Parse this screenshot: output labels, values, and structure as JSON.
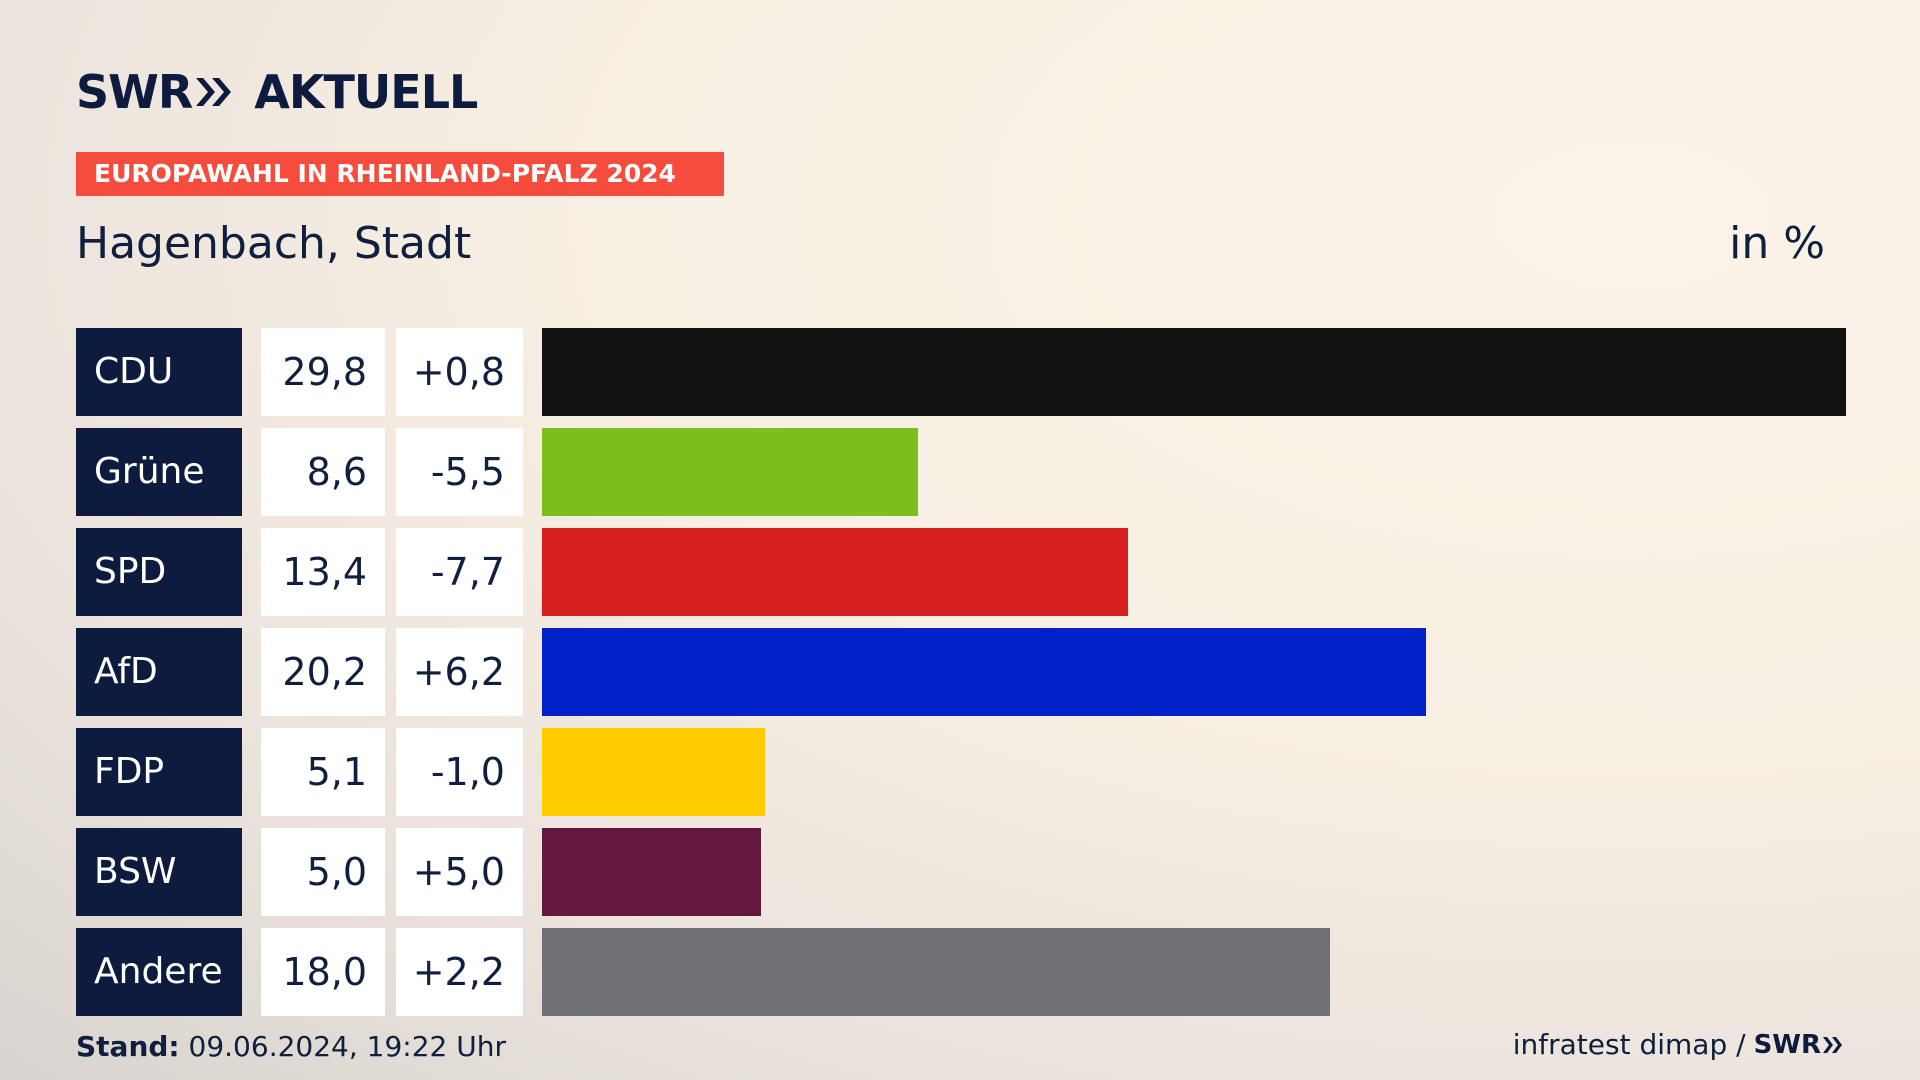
{
  "brand": {
    "swr": "SWR",
    "product": "AKTUELL",
    "chevron_icon": "double-chevron-right-icon",
    "color": "#0d1b3e"
  },
  "banner": {
    "label": "EUROPAWAHL IN RHEINLAND-PFALZ 2024",
    "color": "#f64c3e"
  },
  "chart_data": {
    "type": "bar",
    "orientation": "horizontal",
    "title": "Hagenbach, Stadt",
    "unit": "in %",
    "categories": [
      "CDU",
      "Grüne",
      "SPD",
      "AfD",
      "FDP",
      "BSW",
      "Andere"
    ],
    "values": [
      29.8,
      8.6,
      13.4,
      20.2,
      5.1,
      5.0,
      18.0
    ],
    "value_labels": [
      "29,8",
      "8,6",
      "13,4",
      "20,2",
      "5,1",
      "5,0",
      "18,0"
    ],
    "diff_labels": [
      "+0,8",
      "-5,5",
      "-7,7",
      "+6,2",
      "-1,0",
      "+5,0",
      "+2,2"
    ],
    "colors": [
      "#121212",
      "#7abf1c",
      "#d71f1f",
      "#0021c8",
      "#ffcc00",
      "#64183e",
      "#707174"
    ]
  },
  "footer": {
    "stand_label": "Stand:",
    "stand_value": "09.06.2024, 19:22 Uhr",
    "source": "infratest dimap /",
    "source_brand": "SWR"
  }
}
